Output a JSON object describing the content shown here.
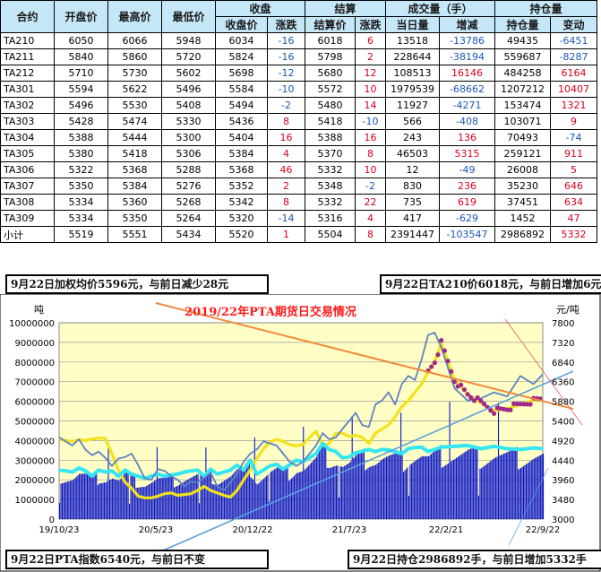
{
  "table": {
    "top_headers": [
      "合约",
      "开盘价",
      "最高价",
      "最低价",
      "收盘",
      "结算",
      "成交量（手）",
      "持仓量"
    ],
    "sub_headers": [
      "收盘价",
      "涨跌",
      "结算价",
      "涨跌",
      "当日量",
      "增减",
      "持仓量",
      "变动"
    ],
    "rows": [
      {
        "contract": "TA210",
        "open": "6050",
        "high": "6066",
        "low": "5948",
        "close": "6034",
        "close_chg": "-16",
        "settle": "6018",
        "settle_chg": "6",
        "vol": "13518",
        "vol_chg": "-13786",
        "oi": "49435",
        "oi_chg": "-6451"
      },
      {
        "contract": "TA211",
        "open": "5840",
        "high": "5860",
        "low": "5720",
        "close": "5824",
        "close_chg": "-16",
        "settle": "5798",
        "settle_chg": "2",
        "vol": "228644",
        "vol_chg": "-38194",
        "oi": "559687",
        "oi_chg": "-8287"
      },
      {
        "contract": "TA212",
        "open": "5710",
        "high": "5730",
        "low": "5602",
        "close": "5698",
        "close_chg": "-12",
        "settle": "5680",
        "settle_chg": "12",
        "vol": "108513",
        "vol_chg": "16146",
        "oi": "484258",
        "oi_chg": "6164"
      },
      {
        "contract": "TA301",
        "open": "5594",
        "high": "5622",
        "low": "5496",
        "close": "5584",
        "close_chg": "-10",
        "settle": "5572",
        "settle_chg": "10",
        "vol": "1979539",
        "vol_chg": "-68662",
        "oi": "1207212",
        "oi_chg": "10407"
      },
      {
        "contract": "TA302",
        "open": "5496",
        "high": "5530",
        "low": "5408",
        "close": "5494",
        "close_chg": "-2",
        "settle": "5480",
        "settle_chg": "14",
        "vol": "11927",
        "vol_chg": "-4271",
        "oi": "153474",
        "oi_chg": "1321"
      },
      {
        "contract": "TA303",
        "open": "5428",
        "high": "5474",
        "low": "5330",
        "close": "5436",
        "close_chg": "8",
        "settle": "5418",
        "settle_chg": "-10",
        "vol": "566",
        "vol_chg": "-408",
        "oi": "103071",
        "oi_chg": "9"
      },
      {
        "contract": "TA304",
        "open": "5388",
        "high": "5444",
        "low": "5300",
        "close": "5404",
        "close_chg": "16",
        "settle": "5388",
        "settle_chg": "16",
        "vol": "243",
        "vol_chg": "136",
        "oi": "70493",
        "oi_chg": "-74"
      },
      {
        "contract": "TA305",
        "open": "5380",
        "high": "5418",
        "low": "5306",
        "close": "5384",
        "close_chg": "4",
        "settle": "5370",
        "settle_chg": "8",
        "vol": "46503",
        "vol_chg": "5315",
        "oi": "259121",
        "oi_chg": "911"
      },
      {
        "contract": "TA306",
        "open": "5322",
        "high": "5368",
        "low": "5288",
        "close": "5368",
        "close_chg": "46",
        "settle": "5332",
        "settle_chg": "10",
        "vol": "12",
        "vol_chg": "-49",
        "oi": "26008",
        "oi_chg": "5"
      },
      {
        "contract": "TA307",
        "open": "5350",
        "high": "5384",
        "low": "5276",
        "close": "5352",
        "close_chg": "2",
        "settle": "5348",
        "settle_chg": "-2",
        "vol": "830",
        "vol_chg": "236",
        "oi": "35230",
        "oi_chg": "646"
      },
      {
        "contract": "TA308",
        "open": "5334",
        "high": "5360",
        "low": "5268",
        "close": "5342",
        "close_chg": "8",
        "settle": "5332",
        "settle_chg": "22",
        "vol": "735",
        "vol_chg": "619",
        "oi": "37451",
        "oi_chg": "634"
      },
      {
        "contract": "TA309",
        "open": "5334",
        "high": "5350",
        "low": "5264",
        "close": "5320",
        "close_chg": "-14",
        "settle": "5316",
        "settle_chg": "4",
        "vol": "417",
        "vol_chg": "-629",
        "oi": "1452",
        "oi_chg": "47"
      },
      {
        "contract": "小计",
        "open": "5519",
        "high": "5551",
        "low": "5434",
        "close": "5520",
        "close_chg": "1",
        "settle": "5504",
        "settle_chg": "8",
        "vol": "2391447",
        "vol_chg": "-103547",
        "oi": "2986892",
        "oi_chg": "5332"
      }
    ]
  },
  "callouts": {
    "top_left": "9月22日加权均价5596元，与前日减少28元",
    "top_right": "9月22日TA210价6018元，与前日增加6元",
    "bottom_left": "9月22日PTA指数6540元，与前日不变",
    "bottom_right": "9月22日持仓2986892手，与前日增加5332手"
  },
  "colors": {
    "plot_bg": "#fffec4",
    "volume_bars": "#0a14c8",
    "open_interest_line": "#33e6f2",
    "weighted_avg_line": "#f2e21a",
    "pta_index_line": "#5e82c4",
    "ta210_dots": "#a0288c",
    "title": "#ff1a1a",
    "trend_orange": "#f08a3c",
    "trend_blue": "#5aa0e0"
  },
  "chart_data": {
    "type": "line",
    "title": "2019/22年PTA期货日交易情况",
    "ylabel_left": "吨",
    "ylabel_right": "元/吨",
    "x_ticks": [
      "19/10/23",
      "20/5/23",
      "20/12/22",
      "21/7/23",
      "22/2/21",
      "22/9/22"
    ],
    "y_left_ticks": [
      0,
      1000000,
      2000000,
      3000000,
      4000000,
      5000000,
      6000000,
      7000000,
      8000000,
      9000000,
      10000000
    ],
    "y_right_ticks": [
      3000,
      3480,
      3960,
      4440,
      4920,
      5400,
      5880,
      6360,
      6840,
      7320,
      7800
    ],
    "ylim_left": [
      0,
      10000000
    ],
    "ylim_right": [
      3000,
      7800
    ],
    "grid": true,
    "x_index": [
      0,
      10,
      20,
      30,
      40,
      50,
      60,
      70,
      80,
      90,
      100,
      110,
      120,
      130,
      140,
      150,
      160,
      170,
      180,
      190,
      200,
      210,
      220,
      230,
      240,
      250,
      260,
      270,
      280,
      290,
      300,
      310,
      320,
      330,
      340,
      350,
      360,
      370,
      380,
      390,
      400,
      410,
      420,
      430,
      440,
      450,
      460,
      470,
      480,
      490,
      500,
      510,
      520,
      530,
      540,
      550,
      560,
      570,
      580,
      600,
      620,
      640,
      660,
      680,
      700,
      720,
      734
    ],
    "series": [
      {
        "kind": "line-right",
        "values": [
          4960,
          4920,
          4900,
          4940,
          4920,
          4960,
          4980,
          4980,
          4600,
          4200,
          3900,
          3760,
          3560,
          3520,
          3520,
          3560,
          3620,
          3640,
          3580,
          3600,
          3620,
          3700,
          3800,
          3700,
          3640,
          3580,
          3540,
          3700,
          3960,
          4200,
          4480,
          4720,
          4880,
          4950,
          4900,
          4820,
          4790,
          4820,
          5000,
          5150,
          4800,
          4850,
          5100,
          5100,
          5020,
          5050,
          5000,
          4850,
          5100,
          5200,
          5300,
          5500,
          5750,
          5900,
          6100,
          6300,
          6600,
          6850,
          7300,
          6400,
          6050,
          5850,
          5650,
          5700,
          5800,
          5900,
          5960
        ]
      },
      {
        "kind": "line-right",
        "values": [
          4200,
          4180,
          4150,
          4250,
          4180,
          4050,
          4200,
          4150,
          4180,
          4050,
          4200,
          4100,
          4050,
          4000,
          4050,
          4100,
          4050,
          4080,
          4100,
          4150,
          4180,
          4200,
          4050,
          4220,
          4100,
          4150,
          4200,
          4320,
          4200,
          4440,
          4100,
          4200,
          4300,
          4340,
          4220,
          4330,
          4440,
          4400,
          4500,
          4600,
          4850,
          4700,
          4650,
          4500,
          4520,
          4620,
          4660,
          4700,
          4650,
          4700,
          4690,
          4650,
          4600,
          4720,
          4750,
          4760,
          4650,
          4700,
          4760,
          4780,
          4800,
          4720,
          4780,
          4720,
          4700,
          4740,
          4720
        ]
      },
      {
        "kind": "line-right",
        "values": [
          5000,
          4900,
          4800,
          4950,
          4700,
          4560,
          4650,
          4500,
          4300,
          4480,
          4520,
          4600,
          4320,
          4000,
          3960,
          4220,
          4180,
          4050,
          3960,
          3800,
          3920,
          3900,
          4000,
          4140,
          3800,
          3700,
          3900,
          4100,
          4400,
          4600,
          4700,
          4900,
          4850,
          4800,
          4600,
          4400,
          4300,
          4400,
          4600,
          4800,
          5100,
          4950,
          5000,
          5200,
          5400,
          5600,
          5300,
          5250,
          5800,
          5900,
          6100,
          5800,
          6300,
          6500,
          6400,
          6900,
          7500,
          7560,
          7200,
          6200,
          5900,
          5950,
          6100,
          6000,
          6500,
          6300,
          6540
        ]
      }
    ]
  }
}
